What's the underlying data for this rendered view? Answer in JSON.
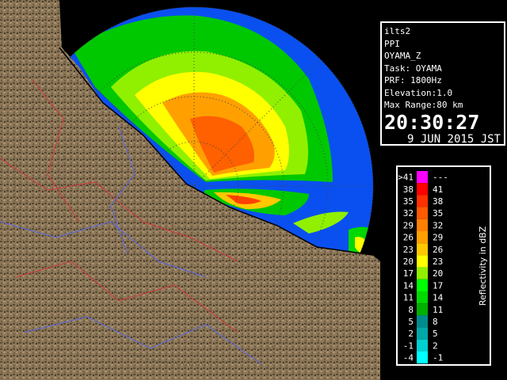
{
  "info": {
    "lines": [
      "ilts2",
      "PPI",
      "OYAMA_Z",
      "Task: OYAMA",
      "PRF: 1800Hz",
      "Elevation:1.0",
      "Max Range:80 km"
    ],
    "time": "20:30:27",
    "date": "9 JUN 2015 JST"
  },
  "legend": {
    "title": "Reflectivity in dBZ",
    "rows": [
      {
        "low": ">41",
        "high": "---",
        "color": "#ff00ff"
      },
      {
        "low": "38",
        "high": "41",
        "color": "#ff0000"
      },
      {
        "low": "35",
        "high": "38",
        "color": "#ff3000"
      },
      {
        "low": "32",
        "high": "35",
        "color": "#ff5a00"
      },
      {
        "low": "29",
        "high": "32",
        "color": "#ff8000"
      },
      {
        "low": "26",
        "high": "29",
        "color": "#ffa000"
      },
      {
        "low": "23",
        "high": "26",
        "color": "#ffc800"
      },
      {
        "low": "20",
        "high": "23",
        "color": "#ffff00"
      },
      {
        "low": "17",
        "high": "20",
        "color": "#90f000"
      },
      {
        "low": "14",
        "high": "17",
        "color": "#00ff00"
      },
      {
        "low": "11",
        "high": "14",
        "color": "#00d800"
      },
      {
        "low": "8",
        "high": "11",
        "color": "#00b000"
      },
      {
        "low": "5",
        "high": "8",
        "color": "#008c8c"
      },
      {
        "low": "2",
        "high": "5",
        "color": "#00a8a8"
      },
      {
        "low": "-1",
        "high": "2",
        "color": "#00d0d0"
      },
      {
        "low": "-4",
        "high": "-1",
        "color": "#00ffff"
      }
    ]
  }
}
